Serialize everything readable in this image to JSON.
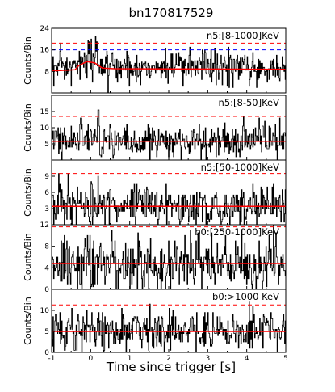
{
  "figure": {
    "title": "bn170817529",
    "xlabel": "Time since trigger [s]"
  },
  "chart_data": [
    {
      "type": "line",
      "panel_label": "n5:[8-1000]KeV",
      "ylabel": "Counts/Bin",
      "xlim": [
        -1,
        5
      ],
      "ylim": [
        0,
        24
      ],
      "yticks": [
        8,
        16,
        24
      ],
      "xticks": [],
      "series": [
        {
          "style": "histogram",
          "color": "#000000",
          "x_range": [
            -1,
            5
          ],
          "bin_width": 0.016,
          "mean": 9.5,
          "spread": 3.2
        },
        {
          "style": "background",
          "color": "#ff0000",
          "values": [
            [
              -1,
              8.2
            ],
            [
              -0.4,
              8.6
            ],
            [
              -0.3,
              10.2
            ],
            [
              -0.1,
              11.6
            ],
            [
              0.1,
              11.2
            ],
            [
              0.3,
              9.2
            ],
            [
              0.6,
              9.0
            ],
            [
              5,
              8.8
            ]
          ]
        }
      ],
      "thresholds": [
        {
          "color": "#ff0000",
          "y": 18.5
        },
        {
          "color": "#0000ff",
          "y": 16
        }
      ],
      "burst": {
        "x_range": [
          -0.3,
          0.5
        ],
        "peak": 22
      }
    },
    {
      "type": "line",
      "panel_label": "n5:[8-50]KeV",
      "ylabel": "Counts/Bin",
      "xlim": [
        -1,
        5
      ],
      "ylim": [
        0,
        20
      ],
      "yticks": [
        5,
        10,
        15
      ],
      "xticks": [],
      "series": [
        {
          "style": "histogram",
          "color": "#000000",
          "x_range": [
            -1,
            5
          ],
          "bin_width": 0.016,
          "mean": 6.0,
          "spread": 2.7
        },
        {
          "style": "background",
          "color": "#ff0000",
          "values": [
            [
              -1,
              5.8
            ],
            [
              5,
              5.8
            ]
          ]
        }
      ],
      "thresholds": [
        {
          "color": "#ff0000",
          "y": 13.5
        }
      ],
      "burst": {
        "x_range": [
          -0.1,
          0.3
        ],
        "peak": 16
      }
    },
    {
      "type": "line",
      "panel_label": "n5:[50-1000]KeV",
      "ylabel": "Counts/Bin",
      "xlim": [
        -1,
        5
      ],
      "ylim": [
        0,
        12
      ],
      "yticks": [
        3,
        6,
        9
      ],
      "xticks": [],
      "series": [
        {
          "style": "histogram",
          "color": "#000000",
          "x_range": [
            -1,
            5
          ],
          "bin_width": 0.016,
          "mean": 3.6,
          "spread": 2.0
        },
        {
          "style": "background",
          "color": "#ff0000",
          "values": [
            [
              -1,
              3.4
            ],
            [
              5,
              3.4
            ]
          ]
        }
      ],
      "thresholds": [
        {
          "color": "#ff0000",
          "y": 9.5
        }
      ],
      "burst": {
        "x_range": [
          -0.4,
          0.2
        ],
        "peak": 10
      }
    },
    {
      "type": "line",
      "panel_label": "b0:[250-1000]KeV",
      "ylabel": "Counts/Bin",
      "xlim": [
        -1,
        5
      ],
      "ylim": [
        0,
        12
      ],
      "yticks": [
        0,
        4,
        8,
        12
      ],
      "xticks": [],
      "series": [
        {
          "style": "histogram",
          "color": "#000000",
          "x_range": [
            -1,
            5
          ],
          "bin_width": 0.016,
          "mean": 4.8,
          "spread": 2.6
        },
        {
          "style": "background",
          "color": "#ff0000",
          "values": [
            [
              -1,
              4.8
            ],
            [
              5,
              4.8
            ]
          ]
        }
      ],
      "thresholds": [
        {
          "color": "#ff0000",
          "y": 11.6
        }
      ],
      "burst": null
    },
    {
      "type": "line",
      "panel_label": "b0:>1000 KeV",
      "ylabel": "Counts/Bin",
      "xlim": [
        -1,
        5
      ],
      "ylim": [
        0,
        15
      ],
      "yticks": [
        0,
        5,
        10
      ],
      "xticks": [
        -1,
        0,
        1,
        2,
        3,
        4,
        5
      ],
      "series": [
        {
          "style": "histogram",
          "color": "#000000",
          "x_range": [
            -1,
            5
          ],
          "bin_width": 0.016,
          "mean": 5.2,
          "spread": 2.3
        },
        {
          "style": "background",
          "color": "#ff0000",
          "values": [
            [
              -1,
              5.0
            ],
            [
              5,
              5.0
            ]
          ]
        }
      ],
      "thresholds": [
        {
          "color": "#ff0000",
          "y": 11.3
        }
      ],
      "burst": null
    }
  ]
}
